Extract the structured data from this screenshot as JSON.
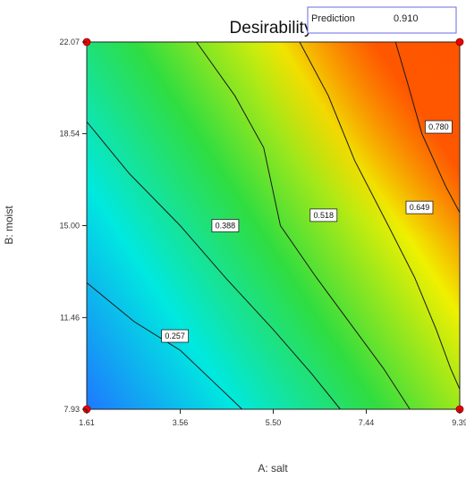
{
  "chart_data": {
    "type": "heatmap",
    "subtype": "contour",
    "title": "Desirability",
    "xlabel": "A: salt",
    "ylabel": "B: moist",
    "xlim": [
      1.61,
      9.39
    ],
    "ylim": [
      7.93,
      22.07
    ],
    "x_ticks": [
      "1.61",
      "3.56",
      "5.50",
      "7.44",
      "9.39"
    ],
    "y_ticks": [
      "7.93",
      "11.46",
      "15.00",
      "18.54",
      "22.07"
    ],
    "prediction": {
      "label": "Prediction",
      "value": "0.910"
    },
    "colors": {
      "low": "#1e78ff",
      "mid_low": "#00e8e0",
      "mid": "#30dd40",
      "mid_high": "#f0f000",
      "high": "#ff5a00",
      "contour": "#1a1a1a",
      "design_point": "#ee0000",
      "prediction_box": "#6a6ae8"
    },
    "contours": [
      {
        "level": "0.257",
        "points": [
          [
            1.61,
            12.8
          ],
          [
            2.6,
            11.3
          ],
          [
            3.56,
            10.2
          ],
          [
            4.3,
            8.9
          ],
          [
            4.85,
            7.93
          ]
        ]
      },
      {
        "level": "0.388",
        "points": [
          [
            1.61,
            19.0
          ],
          [
            2.5,
            17.0
          ],
          [
            3.56,
            15.0
          ],
          [
            4.5,
            13.0
          ],
          [
            5.5,
            11.0
          ],
          [
            6.3,
            9.3
          ],
          [
            6.9,
            7.93
          ]
        ]
      },
      {
        "level": "0.518",
        "points": [
          [
            3.9,
            22.07
          ],
          [
            4.7,
            20.0
          ],
          [
            5.3,
            18.0
          ],
          [
            5.65,
            15.0
          ],
          [
            6.4,
            13.0
          ],
          [
            7.2,
            11.0
          ],
          [
            7.8,
            9.5
          ],
          [
            8.35,
            7.93
          ]
        ]
      },
      {
        "level": "0.649",
        "points": [
          [
            6.05,
            22.07
          ],
          [
            6.65,
            20.0
          ],
          [
            7.2,
            17.5
          ],
          [
            7.9,
            15.0
          ],
          [
            8.45,
            13.0
          ],
          [
            8.9,
            11.0
          ],
          [
            9.2,
            9.5
          ],
          [
            9.39,
            8.7
          ]
        ]
      },
      {
        "level": "0.780",
        "points": [
          [
            8.05,
            22.07
          ],
          [
            8.3,
            20.5
          ],
          [
            8.6,
            18.54
          ],
          [
            9.1,
            16.5
          ],
          [
            9.39,
            15.5
          ]
        ]
      }
    ],
    "contour_labels": [
      {
        "text": "0.257",
        "at": [
          3.45,
          10.75
        ]
      },
      {
        "text": "0.388",
        "at": [
          4.5,
          15.0
        ]
      },
      {
        "text": "0.518",
        "at": [
          6.55,
          15.4
        ]
      },
      {
        "text": "0.649",
        "at": [
          8.55,
          15.7
        ]
      },
      {
        "text": "0.780",
        "at": [
          8.95,
          18.8
        ]
      }
    ],
    "design_points": [
      [
        1.61,
        22.07
      ],
      [
        9.39,
        22.07
      ],
      [
        1.61,
        7.93
      ],
      [
        9.39,
        7.93
      ]
    ]
  }
}
